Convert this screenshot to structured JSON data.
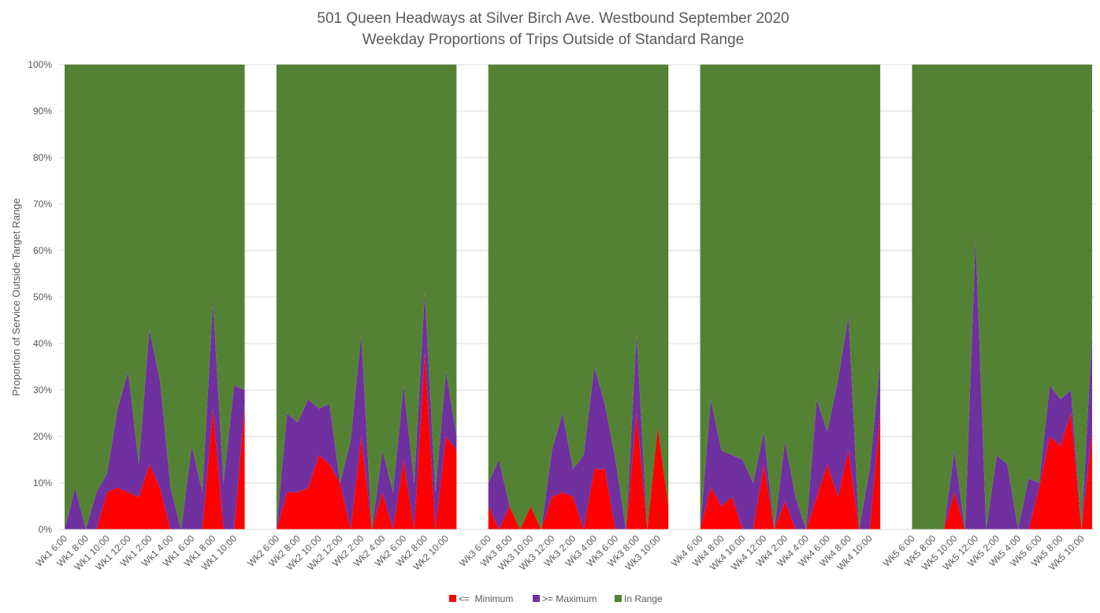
{
  "chart_data": {
    "type": "stacked-area",
    "title": "501 Queen Headways at Silver Birch Ave. Westbound September 2020",
    "subtitle": "Weekday Proportions of Trips Outside of Standard Range",
    "y_label": "Proportion of Service Outside Target Range",
    "categories": [
      "Wk1 6:00",
      null,
      "Wk1 8:00",
      null,
      "Wk1 10:00",
      null,
      "Wk1 12:00",
      null,
      "Wk1 2:00",
      null,
      "Wk1 4:00",
      null,
      "Wk1 6:00",
      null,
      "Wk1 8:00",
      null,
      "Wk1 10:00",
      null,
      null,
      null,
      "Wk2 6:00",
      null,
      "Wk2 8:00",
      null,
      "Wk2 10:00",
      null,
      "Wk2 12:00",
      null,
      "Wk2 2:00",
      null,
      "Wk2 4:00",
      null,
      "Wk2 6:00",
      null,
      "Wk2 8:00",
      null,
      "Wk2 10:00",
      null,
      null,
      null,
      "Wk3 6:00",
      null,
      "Wk3 8:00",
      null,
      "Wk3 10:00",
      null,
      "Wk3 12:00",
      null,
      "Wk3 2:00",
      null,
      "Wk3 4:00",
      null,
      "Wk3 6:00",
      null,
      "Wk3 8:00",
      null,
      "Wk3 10:00",
      null,
      null,
      null,
      "Wk4 6:00",
      null,
      "Wk4 8:00",
      null,
      "Wk4 10:00",
      null,
      "Wk4 12:00",
      null,
      "Wk4 2:00",
      null,
      "Wk4 4:00",
      null,
      "Wk4 6:00",
      null,
      "Wk4 8:00",
      null,
      "Wk4 10:00",
      null,
      null,
      null,
      "Wk5 6:00",
      null,
      "Wk5 8:00",
      null,
      "Wk5 10:00",
      null,
      "Wk5 12:00",
      null,
      "Wk5 2:00",
      null,
      "Wk5 4:00",
      null,
      "Wk5 6:00",
      null,
      "Wk5 8:00",
      null,
      "Wk5 10:00",
      null
    ],
    "series": [
      {
        "name": "<=  Minimum",
        "color": "#ff0000",
        "values": [
          0,
          0,
          0,
          0,
          8,
          9,
          8,
          7,
          14,
          9,
          0,
          0,
          0,
          0,
          26,
          0,
          0,
          27,
          null,
          null,
          0,
          8,
          8,
          9,
          16,
          14,
          10,
          0,
          20,
          0,
          8,
          0,
          15,
          0,
          38,
          0,
          20,
          17,
          null,
          null,
          5,
          0,
          5,
          0,
          5,
          0,
          7,
          8,
          7,
          0,
          13,
          13,
          0,
          0,
          25,
          0,
          22,
          5,
          null,
          null,
          0,
          9,
          5,
          7,
          0,
          0,
          14,
          0,
          6,
          0,
          0,
          7,
          14,
          7,
          17,
          0,
          0,
          25,
          null,
          null,
          0,
          0,
          0,
          0,
          8,
          0,
          0,
          0,
          0,
          0,
          0,
          0,
          9,
          20,
          18,
          25,
          0,
          21
        ]
      },
      {
        "name": ">= Maximum",
        "color": "#7030a0",
        "values": [
          0,
          9,
          0,
          8,
          4,
          17,
          26,
          7,
          29,
          23,
          9,
          0,
          18,
          8,
          23,
          10,
          31,
          3,
          null,
          null,
          0,
          17,
          15,
          19,
          10,
          13,
          0,
          19,
          22,
          0,
          9,
          8,
          16,
          10,
          13,
          8,
          14,
          3,
          null,
          null,
          5,
          15,
          0,
          0,
          0,
          0,
          10,
          17,
          6,
          16,
          22,
          14,
          15,
          0,
          17,
          0,
          0,
          0,
          null,
          null,
          0,
          19,
          12,
          9,
          15,
          10,
          7,
          0,
          13,
          7,
          0,
          21,
          7,
          25,
          29,
          0,
          13,
          11,
          null,
          null,
          0,
          0,
          0,
          0,
          9,
          0,
          63,
          0,
          16,
          14,
          0,
          11,
          1,
          11,
          10,
          5,
          0,
          21
        ]
      },
      {
        "name": "In Range",
        "color": "#548235",
        "values": [
          100,
          91,
          100,
          92,
          88,
          74,
          66,
          86,
          57,
          68,
          91,
          100,
          82,
          92,
          51,
          90,
          69,
          70,
          null,
          null,
          100,
          75,
          77,
          72,
          74,
          73,
          90,
          81,
          58,
          100,
          83,
          92,
          69,
          90,
          49,
          92,
          66,
          80,
          null,
          null,
          90,
          85,
          95,
          100,
          95,
          100,
          83,
          75,
          87,
          84,
          65,
          73,
          85,
          100,
          58,
          100,
          78,
          95,
          null,
          null,
          100,
          72,
          83,
          84,
          85,
          90,
          79,
          100,
          81,
          93,
          100,
          72,
          79,
          68,
          54,
          100,
          87,
          64,
          null,
          null,
          100,
          100,
          100,
          100,
          83,
          100,
          37,
          100,
          84,
          86,
          100,
          89,
          90,
          69,
          72,
          70,
          100,
          58
        ]
      }
    ],
    "ylim": [
      0,
      100
    ],
    "yticks": [
      {
        "value": 0,
        "label": "0%"
      },
      {
        "value": 10,
        "label": "10%"
      },
      {
        "value": 20,
        "label": "20%"
      },
      {
        "value": 30,
        "label": "30%"
      },
      {
        "value": 40,
        "label": "40%"
      },
      {
        "value": 50,
        "label": "50%"
      },
      {
        "value": 60,
        "label": "60%"
      },
      {
        "value": 70,
        "label": "70%"
      },
      {
        "value": 80,
        "label": "80%"
      },
      {
        "value": 90,
        "label": "90%"
      },
      {
        "value": 100,
        "label": "100%"
      }
    ],
    "grid": true,
    "legend": "bottom"
  }
}
